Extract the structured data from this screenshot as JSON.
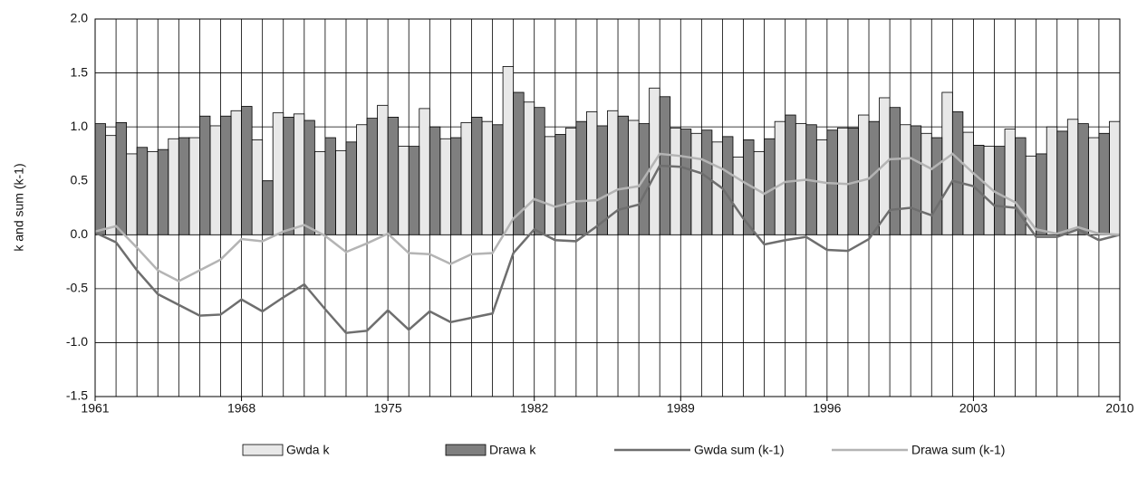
{
  "chart_data": {
    "type": "bar-line",
    "y_label": "k and sum (k-1)",
    "x": [
      1961,
      1962,
      1963,
      1964,
      1965,
      1966,
      1967,
      1968,
      1969,
      1970,
      1971,
      1972,
      1973,
      1974,
      1975,
      1976,
      1977,
      1978,
      1979,
      1980,
      1981,
      1982,
      1983,
      1984,
      1985,
      1986,
      1987,
      1988,
      1989,
      1990,
      1991,
      1992,
      1993,
      1994,
      1995,
      1996,
      1997,
      1998,
      1999,
      2000,
      2001,
      2002,
      2003,
      2004,
      2005,
      2006,
      2007,
      2008,
      2009,
      2010
    ],
    "xlim": [
      1961,
      2010
    ],
    "xticks": [
      1961,
      1968,
      1975,
      1982,
      1989,
      1996,
      2003,
      2010
    ],
    "ylim": [
      -1.5,
      2.0
    ],
    "yticks": [
      {
        "value": -1.5,
        "label": "-1.5"
      },
      {
        "value": -1,
        "label": "-1.0"
      },
      {
        "value": -0.5,
        "label": "-0.5"
      },
      {
        "value": 0,
        "label": "0.0"
      },
      {
        "value": 0.5,
        "label": "0.5"
      },
      {
        "value": 1,
        "label": "1.0"
      },
      {
        "value": 1.5,
        "label": "1.5"
      },
      {
        "value": 2,
        "label": "2.0"
      }
    ],
    "grid": true,
    "legend": "bottom",
    "series": [
      {
        "name": "Gwda k",
        "kind": "bar",
        "color": "#e8e8e8",
        "values": [
          null,
          0.92,
          0.75,
          0.77,
          0.89,
          0.9,
          1.01,
          1.15,
          0.88,
          1.13,
          1.12,
          0.77,
          0.78,
          1.02,
          1.2,
          0.82,
          1.17,
          0.89,
          1.04,
          1.05,
          1.56,
          1.23,
          0.91,
          0.99,
          1.14,
          1.15,
          1.06,
          1.36,
          0.99,
          0.94,
          0.86,
          0.72,
          0.77,
          1.05,
          1.03,
          0.88,
          0.99,
          1.11,
          1.27,
          1.02,
          0.94,
          1.32,
          0.95,
          0.82,
          0.98,
          0.73,
          1.0,
          1.07,
          0.9,
          1.05
        ]
      },
      {
        "name": "Drawa k",
        "kind": "bar",
        "color": "#7f7f7f",
        "values": [
          1.03,
          1.04,
          0.81,
          0.79,
          0.9,
          1.1,
          1.1,
          1.19,
          0.5,
          1.09,
          1.06,
          0.9,
          0.86,
          1.08,
          1.09,
          0.82,
          1.0,
          0.9,
          1.09,
          1.02,
          1.32,
          1.18,
          0.93,
          1.05,
          1.01,
          1.1,
          1.03,
          1.28,
          0.98,
          0.97,
          0.91,
          0.88,
          0.89,
          1.11,
          1.02,
          0.97,
          0.99,
          1.05,
          1.18,
          1.01,
          0.9,
          1.14,
          0.83,
          0.82,
          0.9,
          0.75,
          0.96,
          1.03,
          0.94,
          null
        ]
      },
      {
        "name": "Gwda sum (k-1)",
        "kind": "line",
        "color": "#6e6e6e",
        "values": [
          0.02,
          -0.07,
          -0.33,
          -0.55,
          -0.65,
          -0.75,
          -0.74,
          -0.6,
          -0.71,
          -0.58,
          -0.46,
          -0.69,
          -0.91,
          -0.89,
          -0.7,
          -0.88,
          -0.71,
          -0.81,
          -0.77,
          -0.73,
          -0.17,
          0.05,
          -0.05,
          -0.06,
          0.08,
          0.23,
          0.28,
          0.64,
          0.63,
          0.57,
          0.43,
          0.15,
          -0.09,
          -0.05,
          -0.02,
          -0.14,
          -0.15,
          -0.04,
          0.23,
          0.25,
          0.18,
          0.5,
          0.45,
          0.27,
          0.25,
          -0.02,
          -0.02,
          0.05,
          -0.05,
          0.0
        ]
      },
      {
        "name": "Drawa sum (k-1)",
        "kind": "line",
        "color": "#b4b4b4",
        "values": [
          0.03,
          0.08,
          -0.12,
          -0.33,
          -0.43,
          -0.33,
          -0.23,
          -0.04,
          -0.06,
          0.03,
          0.09,
          -0.01,
          -0.16,
          -0.08,
          0.01,
          -0.17,
          -0.18,
          -0.27,
          -0.18,
          -0.17,
          0.15,
          0.33,
          0.26,
          0.31,
          0.32,
          0.42,
          0.45,
          0.75,
          0.73,
          0.7,
          0.61,
          0.49,
          0.38,
          0.49,
          0.51,
          0.48,
          0.47,
          0.52,
          0.7,
          0.71,
          0.61,
          0.75,
          0.57,
          0.4,
          0.3,
          0.05,
          0.01,
          0.07,
          0.01,
          0.0
        ]
      }
    ]
  }
}
